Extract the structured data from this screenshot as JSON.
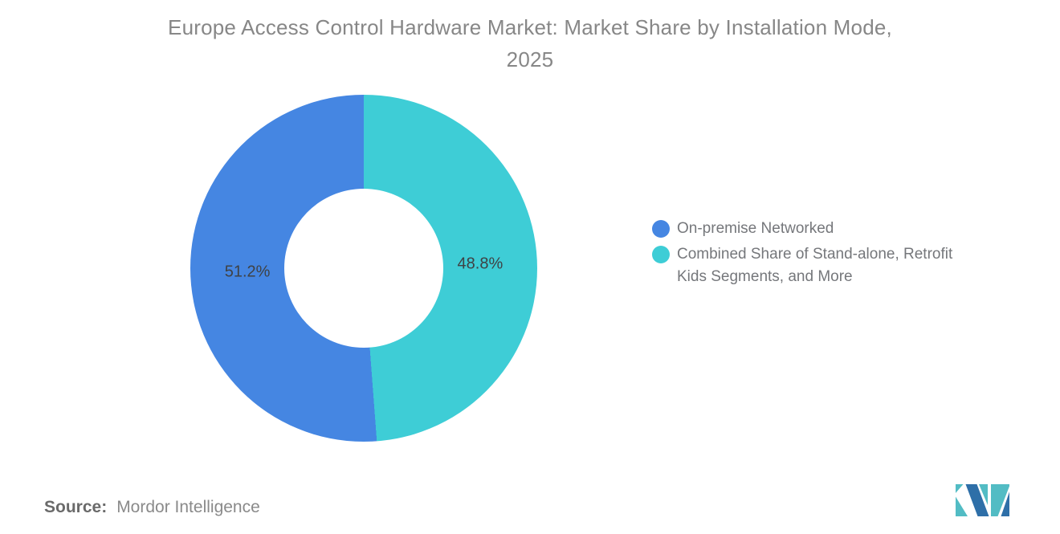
{
  "title": {
    "line1": "Europe Access Control Hardware Market: Market Share by Installation Mode,",
    "line2": "2025"
  },
  "chart_data": {
    "type": "pie",
    "subtype": "donut",
    "title": "Europe Access Control Hardware Market: Market Share by Installation Mode, 2025",
    "slices": [
      {
        "label": "On-premise Networked",
        "value": 51.2,
        "display": "51.2%",
        "color": "#4586E2"
      },
      {
        "label": "Combined Share of Stand-alone, Retrofit Kids Segments, and More",
        "value": 48.8,
        "display": "48.8%",
        "color": "#3ECDD6"
      }
    ],
    "start_angle": "top",
    "clockwise_first_slice": "Combined Share of Stand-alone, Retrofit Kids Segments, and More",
    "label_color": "#3F4245",
    "legend_position": "right",
    "hole_ratio": 0.46
  },
  "source": {
    "label": "Source:",
    "value": "Mordor Intelligence"
  },
  "logo": {
    "name": "mordor-intelligence-logo",
    "colors": {
      "blue": "#2E6FA8",
      "teal": "#52BCC4"
    }
  }
}
